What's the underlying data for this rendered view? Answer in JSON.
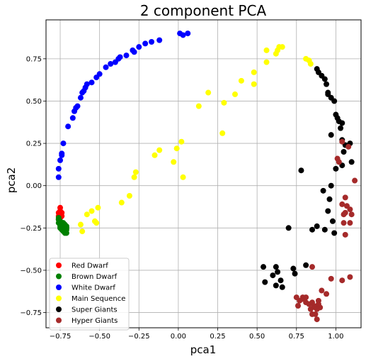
{
  "chart_data": {
    "type": "scatter",
    "title": "2 component PCA",
    "xlabel": "pca1",
    "ylabel": "pca2",
    "xlim": [
      -0.84,
      1.16
    ],
    "ylim": [
      -0.84,
      0.98
    ],
    "xticks": [
      -0.75,
      -0.5,
      -0.25,
      0.0,
      0.25,
      0.5,
      0.75,
      1.0
    ],
    "yticks": [
      -0.75,
      -0.5,
      -0.25,
      0.0,
      0.25,
      0.5,
      0.75
    ],
    "xtick_labels": [
      "−0.75",
      "−0.50",
      "−0.25",
      "0.00",
      "0.25",
      "0.50",
      "0.75",
      "1.00"
    ],
    "ytick_labels": [
      "−0.75",
      "−0.50",
      "−0.25",
      "0.00",
      "0.25",
      "0.50",
      "0.75"
    ],
    "grid": true,
    "legend_position": "lower-left",
    "series": [
      {
        "name": "Red Dwarf",
        "color": "#ff0000",
        "points": [
          [
            -0.75,
            -0.13
          ],
          [
            -0.75,
            -0.15
          ],
          [
            -0.76,
            -0.16
          ],
          [
            -0.75,
            -0.17
          ],
          [
            -0.76,
            -0.18
          ],
          [
            -0.75,
            -0.19
          ],
          [
            -0.76,
            -0.2
          ],
          [
            -0.75,
            -0.21
          ],
          [
            -0.74,
            -0.18
          ],
          [
            -0.74,
            -0.16
          ]
        ]
      },
      {
        "name": "Brown Dwarf",
        "color": "#008000",
        "points": [
          [
            -0.76,
            -0.2
          ],
          [
            -0.76,
            -0.22
          ],
          [
            -0.75,
            -0.23
          ],
          [
            -0.75,
            -0.24
          ],
          [
            -0.74,
            -0.25
          ],
          [
            -0.73,
            -0.26
          ],
          [
            -0.72,
            -0.27
          ],
          [
            -0.74,
            -0.22
          ],
          [
            -0.73,
            -0.24
          ],
          [
            -0.72,
            -0.25
          ],
          [
            -0.71,
            -0.26
          ],
          [
            -0.75,
            -0.21
          ],
          [
            -0.74,
            -0.23
          ],
          [
            -0.73,
            -0.22
          ],
          [
            -0.72,
            -0.23
          ],
          [
            -0.71,
            -0.24
          ],
          [
            -0.71,
            -0.28
          ],
          [
            -0.72,
            -0.28
          ],
          [
            -0.73,
            -0.27
          ],
          [
            -0.74,
            -0.26
          ],
          [
            -0.76,
            -0.19
          ],
          [
            -0.75,
            -0.25
          ],
          [
            -0.72,
            -0.26
          ],
          [
            -0.71,
            -0.25
          ]
        ]
      },
      {
        "name": "White Dwarf",
        "color": "#0000ff",
        "points": [
          [
            -0.76,
            0.05
          ],
          [
            -0.76,
            0.1
          ],
          [
            -0.75,
            0.15
          ],
          [
            -0.74,
            0.18
          ],
          [
            -0.74,
            0.19
          ],
          [
            -0.73,
            0.25
          ],
          [
            -0.7,
            0.35
          ],
          [
            -0.67,
            0.4
          ],
          [
            -0.66,
            0.44
          ],
          [
            -0.65,
            0.46
          ],
          [
            -0.64,
            0.47
          ],
          [
            -0.62,
            0.52
          ],
          [
            -0.61,
            0.55
          ],
          [
            -0.6,
            0.56
          ],
          [
            -0.59,
            0.58
          ],
          [
            -0.58,
            0.6
          ],
          [
            -0.55,
            0.61
          ],
          [
            -0.52,
            0.64
          ],
          [
            -0.5,
            0.66
          ],
          [
            -0.46,
            0.7
          ],
          [
            -0.43,
            0.72
          ],
          [
            -0.4,
            0.73
          ],
          [
            -0.38,
            0.75
          ],
          [
            -0.37,
            0.76
          ],
          [
            -0.33,
            0.77
          ],
          [
            -0.29,
            0.8
          ],
          [
            -0.28,
            0.79
          ],
          [
            -0.25,
            0.82
          ],
          [
            -0.21,
            0.84
          ],
          [
            -0.17,
            0.85
          ],
          [
            -0.12,
            0.86
          ],
          [
            0.01,
            0.9
          ],
          [
            0.03,
            0.89
          ],
          [
            0.06,
            0.9
          ]
        ]
      },
      {
        "name": "Main Sequence",
        "color": "#ffff00",
        "points": [
          [
            -0.62,
            -0.23
          ],
          [
            -0.61,
            -0.27
          ],
          [
            -0.58,
            -0.17
          ],
          [
            -0.55,
            -0.15
          ],
          [
            -0.53,
            -0.21
          ],
          [
            -0.52,
            -0.22
          ],
          [
            -0.51,
            -0.13
          ],
          [
            -0.36,
            -0.1
          ],
          [
            -0.31,
            -0.06
          ],
          [
            -0.28,
            0.05
          ],
          [
            -0.27,
            0.08
          ],
          [
            -0.15,
            0.18
          ],
          [
            -0.12,
            0.21
          ],
          [
            -0.03,
            0.14
          ],
          [
            -0.01,
            0.22
          ],
          [
            0.02,
            0.26
          ],
          [
            0.03,
            0.05
          ],
          [
            0.13,
            0.47
          ],
          [
            0.19,
            0.55
          ],
          [
            0.28,
            0.31
          ],
          [
            0.29,
            0.49
          ],
          [
            0.36,
            0.54
          ],
          [
            0.4,
            0.62
          ],
          [
            0.48,
            0.67
          ],
          [
            0.48,
            0.6
          ],
          [
            0.56,
            0.73
          ],
          [
            0.56,
            0.8
          ],
          [
            0.62,
            0.78
          ],
          [
            0.63,
            0.8
          ],
          [
            0.64,
            0.82
          ],
          [
            0.66,
            0.82
          ],
          [
            0.81,
            0.75
          ],
          [
            0.83,
            0.74
          ],
          [
            0.84,
            0.72
          ]
        ]
      },
      {
        "name": "Super Giants",
        "color": "#000000",
        "points": [
          [
            0.88,
            0.69
          ],
          [
            0.89,
            0.67
          ],
          [
            0.91,
            0.65
          ],
          [
            0.93,
            0.63
          ],
          [
            0.94,
            0.6
          ],
          [
            0.95,
            0.55
          ],
          [
            0.95,
            0.54
          ],
          [
            0.97,
            0.52
          ],
          [
            0.99,
            0.5
          ],
          [
            1.0,
            0.42
          ],
          [
            1.01,
            0.4
          ],
          [
            1.02,
            0.38
          ],
          [
            1.04,
            0.37
          ],
          [
            0.97,
            0.3
          ],
          [
            1.03,
            0.34
          ],
          [
            1.04,
            0.27
          ],
          [
            1.06,
            0.24
          ],
          [
            1.09,
            0.25
          ],
          [
            1.1,
            0.14
          ],
          [
            1.05,
            0.2
          ],
          [
            1.04,
            0.12
          ],
          [
            1.0,
            0.1
          ],
          [
            0.97,
            0.0
          ],
          [
            0.78,
            0.09
          ],
          [
            0.92,
            -0.03
          ],
          [
            0.96,
            -0.08
          ],
          [
            0.95,
            -0.15
          ],
          [
            0.98,
            -0.21
          ],
          [
            0.88,
            -0.24
          ],
          [
            0.93,
            -0.26
          ],
          [
            0.99,
            -0.28
          ],
          [
            0.7,
            -0.25
          ],
          [
            0.85,
            -0.26
          ],
          [
            0.54,
            -0.48
          ],
          [
            0.55,
            -0.57
          ],
          [
            0.62,
            -0.48
          ],
          [
            0.63,
            -0.51
          ],
          [
            0.65,
            -0.56
          ],
          [
            0.66,
            -0.6
          ],
          [
            0.6,
            -0.53
          ],
          [
            0.62,
            -0.59
          ],
          [
            0.73,
            -0.49
          ],
          [
            0.74,
            -0.52
          ],
          [
            0.81,
            -0.47
          ]
        ]
      },
      {
        "name": "Hyper Giants",
        "color": "#a52a2a",
        "points": [
          [
            1.04,
            0.26
          ],
          [
            1.08,
            0.23
          ],
          [
            1.01,
            0.16
          ],
          [
            1.02,
            0.14
          ],
          [
            1.12,
            0.03
          ],
          [
            1.06,
            -0.07
          ],
          [
            1.04,
            -0.11
          ],
          [
            1.07,
            -0.12
          ],
          [
            1.06,
            -0.16
          ],
          [
            1.05,
            -0.17
          ],
          [
            1.09,
            -0.14
          ],
          [
            1.1,
            -0.17
          ],
          [
            1.09,
            -0.22
          ],
          [
            1.06,
            -0.29
          ],
          [
            1.05,
            -0.22
          ],
          [
            0.85,
            -0.48
          ],
          [
            0.75,
            -0.66
          ],
          [
            0.79,
            -0.66
          ],
          [
            0.76,
            -0.71
          ],
          [
            0.79,
            -0.67
          ],
          [
            0.81,
            -0.69
          ],
          [
            0.83,
            -0.7
          ],
          [
            0.84,
            -0.73
          ],
          [
            0.85,
            -0.69
          ],
          [
            0.86,
            -0.71
          ],
          [
            0.87,
            -0.72
          ],
          [
            0.87,
            -0.76
          ],
          [
            0.88,
            -0.73
          ],
          [
            0.89,
            -0.7
          ],
          [
            0.89,
            -0.68
          ],
          [
            0.85,
            -0.76
          ],
          [
            0.9,
            -0.72
          ],
          [
            0.91,
            -0.62
          ],
          [
            0.94,
            -0.64
          ],
          [
            0.97,
            -0.55
          ],
          [
            1.04,
            -0.56
          ],
          [
            1.09,
            -0.54
          ],
          [
            0.81,
            -0.66
          ],
          [
            0.77,
            -0.68
          ],
          [
            0.88,
            -0.79
          ]
        ]
      }
    ]
  }
}
